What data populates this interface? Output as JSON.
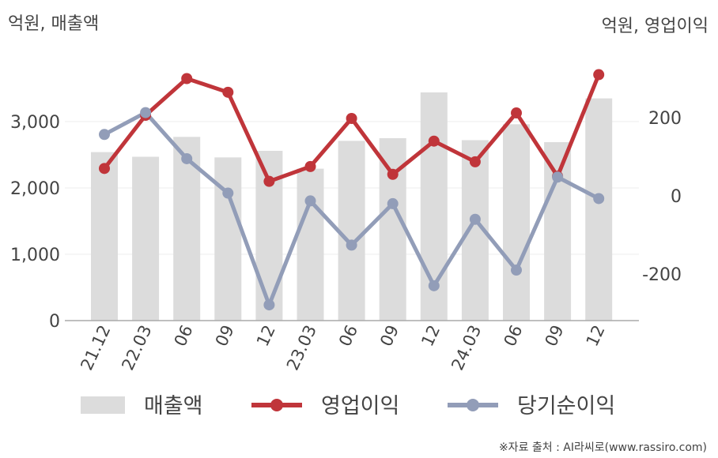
{
  "chart_data": {
    "type": "bar",
    "left_axis_label": "억원, 매출액",
    "right_axis_label": "억원, 영업이익",
    "categories": [
      "21.12",
      "22.03",
      "06",
      "09",
      "12",
      "23.03",
      "06",
      "09",
      "12",
      "24.03",
      "06",
      "09",
      "12"
    ],
    "y_left": {
      "range": [
        0,
        3800
      ],
      "ticks": [
        0,
        1000,
        2000,
        3000
      ],
      "tick_labels": [
        "0",
        "1,000",
        "2,000",
        "3,000"
      ]
    },
    "y_right": {
      "range": [
        -320,
        360
      ],
      "ticks": [
        -200,
        0,
        200
      ],
      "tick_labels": [
        "-200",
        "0",
        "200"
      ]
    },
    "grid": true,
    "legend_position": "bottom",
    "series": [
      {
        "name": "매출액",
        "type": "bar",
        "axis": "left",
        "color": "#dcdcdc",
        "values": [
          2540,
          2470,
          2770,
          2460,
          2560,
          2290,
          2710,
          2750,
          3440,
          2720,
          2960,
          2690,
          3350
        ]
      },
      {
        "name": "영업이익",
        "type": "line",
        "axis": "right",
        "color": "#c0353a",
        "values": [
          70,
          206,
          300,
          265,
          37,
          75,
          198,
          55,
          140,
          87,
          212,
          50,
          310
        ]
      },
      {
        "name": "당기순이익",
        "type": "line",
        "axis": "right",
        "color": "#929db8",
        "values": [
          157,
          213,
          95,
          7,
          -279,
          -13,
          -126,
          -20,
          -230,
          -60,
          -190,
          48,
          -7
        ]
      }
    ]
  },
  "source": "※자료 출처 : AI라씨로(www.rassiro.com)"
}
